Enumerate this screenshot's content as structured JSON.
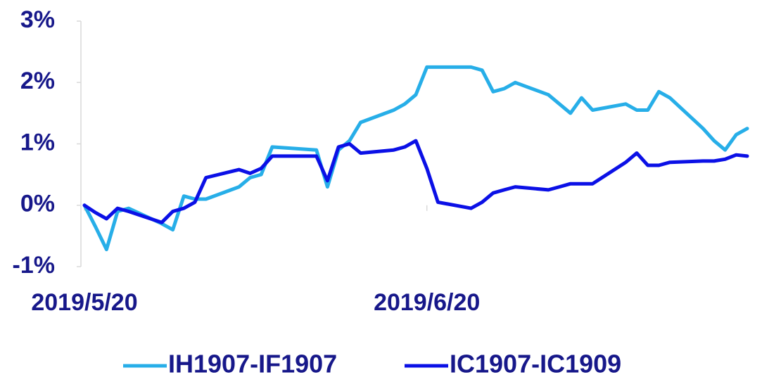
{
  "chart_data": {
    "type": "line",
    "x": [
      "2019/5/20",
      "2019/5/21",
      "2019/5/22",
      "2019/5/23",
      "2019/5/24",
      "2019/5/27",
      "2019/5/28",
      "2019/5/29",
      "2019/5/30",
      "2019/5/31",
      "2019/6/3",
      "2019/6/4",
      "2019/6/5",
      "2019/6/6",
      "2019/6/10",
      "2019/6/11",
      "2019/6/12",
      "2019/6/13",
      "2019/6/14",
      "2019/6/17",
      "2019/6/18",
      "2019/6/19",
      "2019/6/20",
      "2019/6/21",
      "2019/6/24",
      "2019/6/25",
      "2019/6/26",
      "2019/6/27",
      "2019/6/28",
      "2019/7/1",
      "2019/7/2",
      "2019/7/3",
      "2019/7/4",
      "2019/7/5",
      "2019/7/8",
      "2019/7/9",
      "2019/7/10",
      "2019/7/11",
      "2019/7/12",
      "2019/7/15",
      "2019/7/16",
      "2019/7/17",
      "2019/7/18",
      "2019/7/19"
    ],
    "series": [
      {
        "name": "IH1907-IF1907",
        "color": "#27aee8",
        "values": [
          0,
          -0.35,
          -0.72,
          -0.1,
          -0.05,
          -0.3,
          -0.4,
          0.15,
          0.1,
          0.1,
          0.3,
          0.45,
          0.5,
          0.95,
          0.9,
          0.3,
          0.9,
          1.05,
          1.35,
          1.55,
          1.65,
          1.8,
          2.25,
          2.25,
          2.25,
          2.2,
          1.85,
          1.9,
          2.0,
          1.8,
          1.65,
          1.5,
          1.75,
          1.55,
          1.65,
          1.55,
          1.55,
          1.85,
          1.75,
          1.25,
          1.05,
          0.9,
          1.15,
          1.25
        ]
      },
      {
        "name": "IC1907-IC1909",
        "color": "#0b10e6",
        "values": [
          0,
          -0.12,
          -0.22,
          -0.05,
          -0.1,
          -0.28,
          -0.1,
          -0.05,
          0.05,
          0.45,
          0.58,
          0.52,
          0.6,
          0.8,
          0.8,
          0.4,
          0.95,
          1.0,
          0.85,
          0.9,
          0.95,
          1.05,
          0.6,
          0.05,
          -0.05,
          0.05,
          0.2,
          0.25,
          0.3,
          0.25,
          0.3,
          0.35,
          0.35,
          0.35,
          0.7,
          0.85,
          0.65,
          0.65,
          0.7,
          0.72,
          0.72,
          0.75,
          0.82,
          0.8
        ]
      }
    ],
    "xlim": [
      "2019/5/20",
      "2019/7/19"
    ],
    "xticks": [
      "2019/5/20",
      "2019/6/20"
    ],
    "ylim": [
      -1,
      3
    ],
    "yticks": [
      {
        "value": -1,
        "label": "-1%"
      },
      {
        "value": 0,
        "label": "0%"
      },
      {
        "value": 1,
        "label": "1%"
      },
      {
        "value": 2,
        "label": "2%"
      },
      {
        "value": 3,
        "label": "3%"
      }
    ],
    "legend": "bottom"
  }
}
